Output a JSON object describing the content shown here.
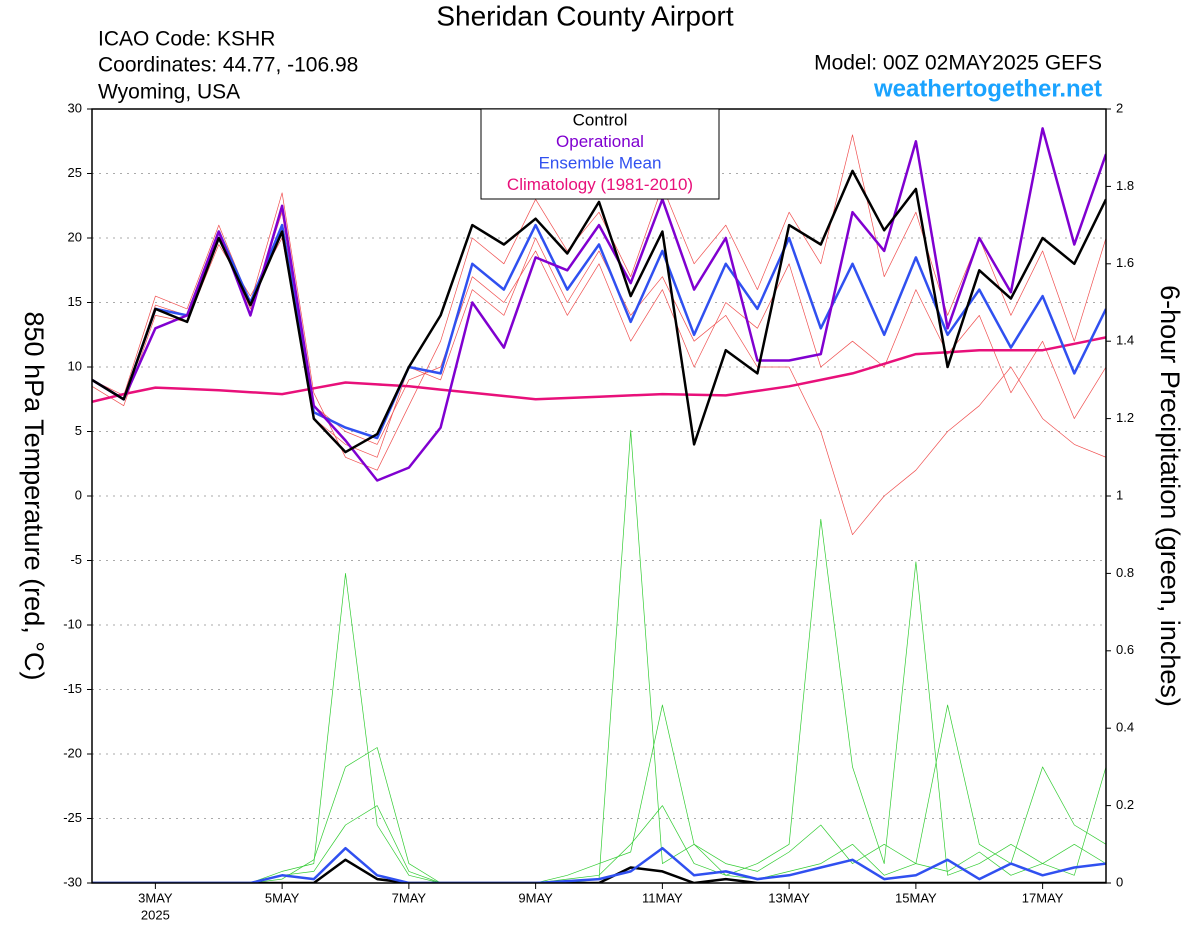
{
  "chart_data": {
    "type": "line",
    "title": "Sheridan County Airport",
    "info_lines": [
      "ICAO Code: KSHR",
      "Coordinates: 44.77, -106.98",
      "Wyoming, USA"
    ],
    "model": "Model: 00Z 02MAY2025 GEFS",
    "site": "weathertogether.net",
    "y_label": "850 hPa Temperature (red, °C)",
    "y2_label": "6-hour Precipitation (green, inches)",
    "x_year_label": "2025",
    "xlim": [
      0,
      16
    ],
    "xticks": [
      {
        "value": 1,
        "label": "3MAY"
      },
      {
        "value": 3,
        "label": "5MAY"
      },
      {
        "value": 5,
        "label": "7MAY"
      },
      {
        "value": 7,
        "label": "9MAY"
      },
      {
        "value": 9,
        "label": "11MAY"
      },
      {
        "value": 11,
        "label": "13MAY"
      },
      {
        "value": 13,
        "label": "15MAY"
      },
      {
        "value": 15,
        "label": "17MAY"
      }
    ],
    "ylim": [
      -30,
      30
    ],
    "yticks": [
      -30,
      -25,
      -20,
      -15,
      -10,
      -5,
      0,
      5,
      10,
      15,
      20,
      25,
      30
    ],
    "y2lim": [
      0,
      2
    ],
    "y2ticks": [
      0,
      0.2,
      0.4,
      0.6,
      0.8,
      1,
      1.2,
      1.4,
      1.6,
      1.8,
      2
    ],
    "grid": true,
    "legend": "top",
    "x": [
      0,
      0.5,
      1,
      1.5,
      2,
      2.5,
      3,
      3.5,
      4,
      4.5,
      5,
      5.5,
      6,
      6.5,
      7,
      7.5,
      8,
      8.5,
      9,
      9.5,
      10,
      10.5,
      11,
      11.5,
      12,
      12.5,
      13,
      13.5,
      14,
      14.5,
      15,
      15.5,
      16
    ],
    "series": [
      {
        "color": "#f05050",
        "width": 0.7,
        "values": [
          9,
          7.8,
          15.5,
          14.5,
          21,
          15,
          23.5,
          8,
          3,
          2,
          7,
          12,
          20,
          18,
          23,
          19,
          22,
          17,
          24,
          18,
          21,
          16,
          22,
          18,
          28,
          17,
          22,
          14,
          20,
          14,
          19,
          12,
          20
        ]
      },
      {
        "color": "#f05050",
        "width": 0.7,
        "values": [
          8.5,
          7,
          14,
          13.5,
          19.5,
          15.5,
          20,
          7,
          5,
          4,
          9,
          10,
          17,
          15,
          19,
          14,
          18,
          12,
          16,
          10,
          15,
          13,
          18,
          10,
          12,
          10,
          16,
          11,
          14,
          8,
          12,
          6,
          10
        ]
      },
      {
        "color": "#f05050",
        "width": 0.7,
        "values": [
          9,
          7.5,
          14.8,
          14,
          20,
          14.5,
          22,
          6,
          4,
          3,
          10,
          9,
          16,
          14,
          20,
          15,
          19,
          14,
          17,
          12,
          14,
          10,
          10,
          5,
          -3,
          0,
          2,
          5,
          7,
          10,
          6,
          4,
          3
        ]
      },
      {
        "color": "#33cc33",
        "width": 0.7,
        "axis": "y2",
        "values": [
          0,
          0,
          0,
          0,
          0,
          0,
          0.03,
          0.05,
          0.8,
          0.15,
          0.02,
          0,
          0,
          0,
          0,
          0.01,
          0.02,
          0.1,
          0.2,
          0.05,
          0.02,
          0.01,
          0.03,
          0.05,
          0.1,
          0.02,
          0.05,
          0.03,
          0.08,
          0.02,
          0.05,
          0.1,
          0.05
        ]
      },
      {
        "color": "#33cc33",
        "width": 0.7,
        "axis": "y2",
        "values": [
          0,
          0,
          0,
          0,
          0,
          0,
          0.01,
          0.06,
          0.3,
          0.35,
          0.05,
          0,
          0,
          0,
          0,
          0,
          0.01,
          1.17,
          0.05,
          0.1,
          0.02,
          0.05,
          0.1,
          0.94,
          0.3,
          0.05,
          0.83,
          0.02,
          0.05,
          0.1,
          0.05,
          0.02,
          0.3
        ]
      },
      {
        "color": "#33cc33",
        "width": 0.7,
        "axis": "y2",
        "values": [
          0,
          0,
          0,
          0,
          0,
          0,
          0.02,
          0.03,
          0.15,
          0.2,
          0.03,
          0,
          0,
          0,
          0,
          0.02,
          0.05,
          0.08,
          0.46,
          0.1,
          0.05,
          0.03,
          0.08,
          0.15,
          0.05,
          0.1,
          0.05,
          0.46,
          0.1,
          0.05,
          0.3,
          0.15,
          0.1
        ]
      },
      {
        "color": "#000000",
        "width": 2.5,
        "axis": "y2",
        "values": [
          0,
          0,
          0,
          0,
          0,
          0,
          0,
          0,
          0.06,
          0.01,
          0,
          0,
          0,
          0,
          0,
          0,
          0,
          0.04,
          0.03,
          0,
          0.01,
          0,
          0,
          0,
          0,
          0,
          0,
          0,
          0,
          0,
          0,
          0,
          0
        ]
      },
      {
        "color": "#3050f0",
        "width": 2.5,
        "axis": "y2",
        "values": [
          0,
          0,
          0,
          0,
          0,
          0,
          0.02,
          0.01,
          0.09,
          0.02,
          0,
          0,
          0,
          0,
          0,
          0.005,
          0.01,
          0.03,
          0.09,
          0.02,
          0.03,
          0.01,
          0.02,
          0.04,
          0.06,
          0.01,
          0.02,
          0.06,
          0.01,
          0.05,
          0.02,
          0.04,
          0.05
        ]
      },
      {
        "name": "Climatology (1981-2010)",
        "color": "#e8107a",
        "width": 2.5,
        "values": [
          7.3,
          7.9,
          8.4,
          8.3,
          8.2,
          8.05,
          7.9,
          8.35,
          8.8,
          8.65,
          8.5,
          8.25,
          8,
          7.75,
          7.5,
          7.6,
          7.7,
          7.8,
          7.9,
          7.85,
          7.8,
          8.15,
          8.5,
          9,
          9.5,
          10.25,
          11,
          11.15,
          11.3,
          11.3,
          11.3,
          11.8,
          12.3
        ]
      },
      {
        "name": "Ensemble Mean",
        "color": "#3050f0",
        "width": 2.5,
        "values": [
          9,
          7.5,
          14.5,
          14,
          20.5,
          15,
          21,
          6.5,
          5.3,
          4.5,
          10,
          9.5,
          18,
          16,
          21,
          16,
          19.5,
          13.5,
          19,
          12.5,
          18,
          14.5,
          20,
          13,
          18,
          12.5,
          18.5,
          12.5,
          16,
          11.5,
          15.5,
          9.5,
          14.5
        ]
      },
      {
        "name": "Operational",
        "color": "#8000d0",
        "width": 2.5,
        "values": [
          9,
          7.5,
          13,
          14,
          20.5,
          14,
          22.5,
          7,
          4.3,
          1.2,
          2.2,
          5.3,
          15,
          11.5,
          18.5,
          17.5,
          21,
          16.5,
          23,
          16,
          20,
          10.5,
          10.5,
          11,
          22,
          19,
          27.5,
          13,
          20,
          15.8,
          28.5,
          19.5,
          26.5
        ]
      },
      {
        "name": "Control",
        "color": "#000000",
        "width": 2.5,
        "values": [
          9,
          7.5,
          14.5,
          13.5,
          20,
          14.8,
          20.5,
          6,
          3.4,
          4.8,
          10,
          14,
          21,
          19.5,
          21.5,
          18.8,
          22.8,
          15.5,
          20.5,
          4,
          11.3,
          9.5,
          21,
          19.5,
          25.2,
          20.6,
          23.8,
          10,
          17.5,
          15.3,
          20,
          18,
          23
        ]
      }
    ]
  }
}
